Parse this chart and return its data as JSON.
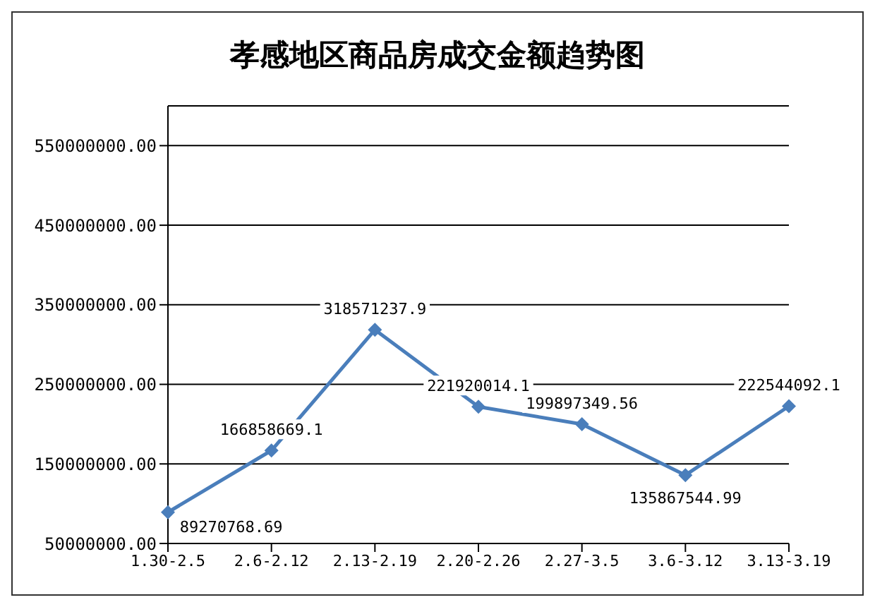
{
  "chart_data": {
    "type": "line",
    "title": "孝感地区商品房成交金额趋势图",
    "categories": [
      "1.30-2.5",
      "2.6-2.12",
      "2.13-2.19",
      "2.20-2.26",
      "2.27-3.5",
      "3.6-3.12",
      "3.13-3.19"
    ],
    "series": [
      {
        "color": "#4a7ebb",
        "values": [
          89270768.69,
          166858669.1,
          318571237.9,
          221920014.1,
          199897349.56,
          135867544.99,
          222544092.1
        ]
      }
    ],
    "ylim": [
      50000000,
      600000000
    ],
    "yticks": [
      {
        "value": 50000000,
        "label": "50000000.00"
      },
      {
        "value": 150000000,
        "label": "150000000.00"
      },
      {
        "value": 250000000,
        "label": "250000000.00"
      },
      {
        "value": 350000000,
        "label": "350000000.00"
      },
      {
        "value": 450000000,
        "label": "450000000.00"
      },
      {
        "value": 550000000,
        "label": "550000000.00"
      }
    ],
    "grid": "y",
    "marker": "diamond",
    "line_style": "solid",
    "data_labels": true,
    "legend": false
  }
}
